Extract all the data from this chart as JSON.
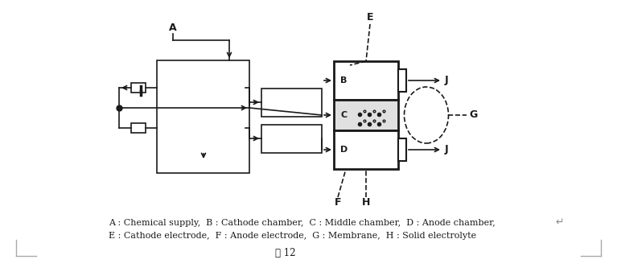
{
  "fig_width": 7.67,
  "fig_height": 3.33,
  "bg_color": "#ffffff",
  "line_color": "#1a1a1a",
  "caption_line1": "A : Chemical supply,  B : Cathode chamber,  C : Middle chamber,  D : Anode chamber,",
  "caption_line2": "E : Cathode electrode,  F : Anode electrode,  G : Membrane,  H : Solid electrolyte",
  "fig_label": "图 12"
}
